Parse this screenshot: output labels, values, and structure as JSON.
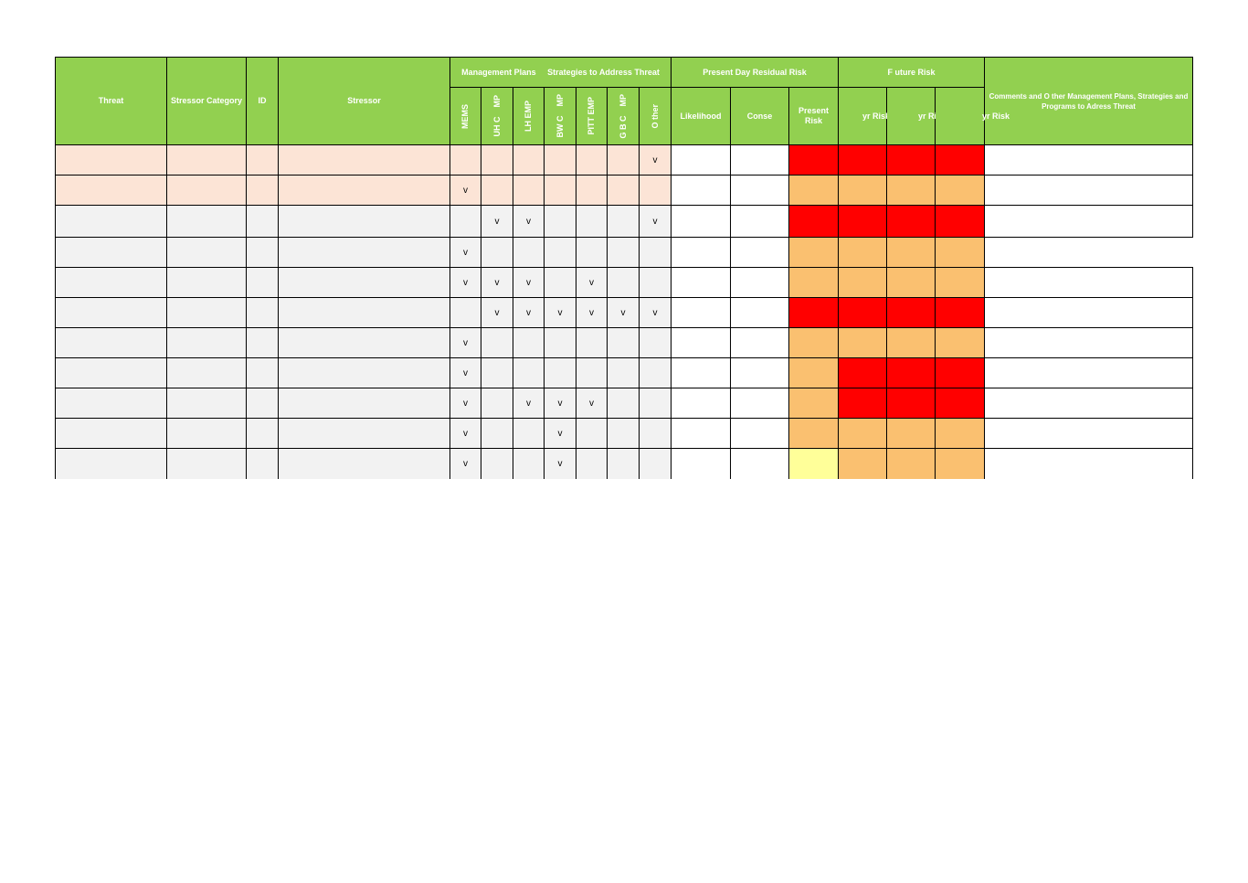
{
  "header": {
    "threat": "Threat",
    "stressor_category": "Stressor Category",
    "id": "ID",
    "stressor": "Stressor",
    "mgmt_group": "Management Plans     Strategies to Address Threat",
    "mgmt_cols": [
      "MEMS",
      "UH C    MP",
      "LH EMP",
      "BW C    MP",
      "PITT EMP",
      "G B C    MP",
      "O ther"
    ],
    "present_group": "Present Day Residual Risk",
    "likelihood": "Likelihood",
    "conse": "Conse",
    "present_risk": "Present Risk",
    "future_group": "F uture Risk",
    "future_cols": [
      "yr Risk",
      "yr Risk",
      "yr Risk"
    ],
    "comments": "Comments and O ther Management Plans, Strategies and Programs to Adress Threat"
  },
  "check_symbol": "v",
  "rows": [
    {
      "shade": "pink",
      "checks": [
        0,
        0,
        0,
        0,
        0,
        0,
        1
      ],
      "risk": [
        "red",
        "red",
        "red",
        "red"
      ]
    },
    {
      "shade": "pink",
      "checks": [
        1,
        0,
        0,
        0,
        0,
        0,
        0
      ],
      "risk": [
        "orange",
        "orange",
        "orange",
        "orange"
      ]
    },
    {
      "shade": "grey",
      "checks": [
        0,
        1,
        1,
        0,
        0,
        0,
        1
      ],
      "risk": [
        "red",
        "red",
        "red",
        "red"
      ]
    },
    {
      "shade": "grey",
      "checks": [
        1,
        0,
        0,
        0,
        0,
        0,
        0
      ],
      "risk": [
        "orange",
        "orange",
        "orange",
        "orange"
      ]
    },
    {
      "shade": "grey",
      "checks": [
        1,
        1,
        1,
        0,
        1,
        0,
        0
      ],
      "risk": [
        "orange",
        "orange",
        "orange",
        "orange"
      ]
    },
    {
      "shade": "grey",
      "checks": [
        0,
        1,
        1,
        1,
        1,
        1,
        1
      ],
      "risk": [
        "red",
        "red",
        "red",
        "red"
      ]
    },
    {
      "shade": "grey",
      "checks": [
        1,
        0,
        0,
        0,
        0,
        0,
        0
      ],
      "risk": [
        "orange",
        "orange",
        "orange",
        "orange"
      ]
    },
    {
      "shade": "grey",
      "checks": [
        1,
        0,
        0,
        0,
        0,
        0,
        0
      ],
      "risk": [
        "orange",
        "red",
        "red",
        "red"
      ]
    },
    {
      "shade": "grey",
      "checks": [
        1,
        0,
        1,
        1,
        1,
        0,
        0
      ],
      "risk": [
        "orange",
        "red",
        "red",
        "red"
      ]
    },
    {
      "shade": "grey",
      "checks": [
        1,
        0,
        0,
        1,
        0,
        0,
        0
      ],
      "risk": [
        "orange",
        "orange",
        "orange",
        "orange"
      ]
    },
    {
      "shade": "grey",
      "checks": [
        1,
        0,
        0,
        1,
        0,
        0,
        0
      ],
      "risk": [
        "yellow",
        "orange",
        "orange",
        "orange"
      ]
    }
  ]
}
